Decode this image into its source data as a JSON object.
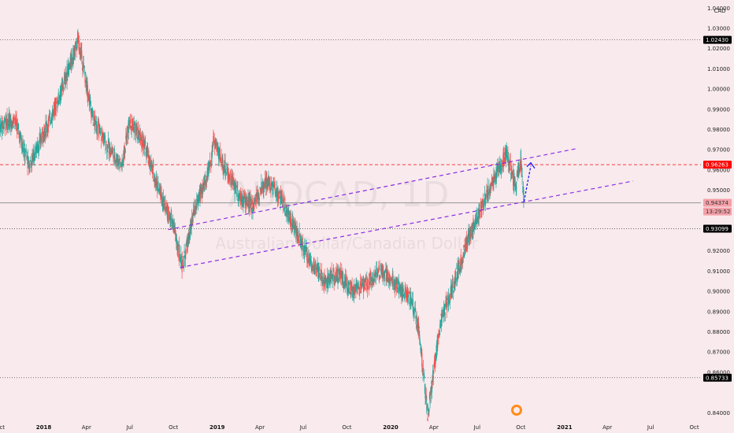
{
  "chart_data": {
    "type": "candlestick",
    "symbol": "AUDCAD, 1D",
    "instrument_name": "Australian Dollar/Canadian Dollar",
    "currency": "CAD",
    "y_axis": {
      "min": 0.837,
      "max": 1.044,
      "ticks": [
        "1.04000",
        "1.03000",
        "1.02000",
        "1.01000",
        "1.00000",
        "0.99000",
        "0.98000",
        "0.97000",
        "0.96000",
        "0.95000",
        "0.92000",
        "0.91000",
        "0.90000",
        "0.89000",
        "0.88000",
        "0.87000",
        "0.86000",
        "0.84000"
      ]
    },
    "x_axis": {
      "start": "2017-10-01",
      "end": "2021-10-15",
      "ticks": [
        {
          "label": "Oct",
          "date": "2017-10-01"
        },
        {
          "label": "2018",
          "date": "2018-01-01",
          "bold": true
        },
        {
          "label": "Apr",
          "date": "2018-04-01"
        },
        {
          "label": "Jul",
          "date": "2018-07-01"
        },
        {
          "label": "Oct",
          "date": "2018-10-01"
        },
        {
          "label": "2019",
          "date": "2019-01-01",
          "bold": true
        },
        {
          "label": "Apr",
          "date": "2019-04-01"
        },
        {
          "label": "Jul",
          "date": "2019-07-01"
        },
        {
          "label": "Oct",
          "date": "2019-10-01"
        },
        {
          "label": "2020",
          "date": "2020-01-01",
          "bold": true
        },
        {
          "label": "Apr",
          "date": "2020-04-01"
        },
        {
          "label": "Jul",
          "date": "2020-07-01"
        },
        {
          "label": "Oct",
          "date": "2020-10-01"
        },
        {
          "label": "2021",
          "date": "2021-01-01",
          "bold": true
        },
        {
          "label": "Apr",
          "date": "2021-04-01"
        },
        {
          "label": "Jul",
          "date": "2021-07-01"
        },
        {
          "label": "Oct",
          "date": "2021-10-01"
        }
      ]
    },
    "price_path": [
      [
        "2017-10-01",
        0.982
      ],
      [
        "2017-11-01",
        0.985
      ],
      [
        "2017-12-01",
        0.962
      ],
      [
        "2018-01-01",
        0.978
      ],
      [
        "2018-02-01",
        0.995
      ],
      [
        "2018-03-15",
        1.024
      ],
      [
        "2018-04-15",
        0.985
      ],
      [
        "2018-05-15",
        0.972
      ],
      [
        "2018-06-15",
        0.962
      ],
      [
        "2018-07-01",
        0.985
      ],
      [
        "2018-08-01",
        0.972
      ],
      [
        "2018-09-01",
        0.95
      ],
      [
        "2018-10-01",
        0.932
      ],
      [
        "2018-10-20",
        0.912
      ],
      [
        "2018-11-15",
        0.94
      ],
      [
        "2018-12-15",
        0.96
      ],
      [
        "2018-12-25",
        0.975
      ],
      [
        "2019-01-15",
        0.962
      ],
      [
        "2019-02-15",
        0.948
      ],
      [
        "2019-03-15",
        0.942
      ],
      [
        "2019-04-15",
        0.955
      ],
      [
        "2019-05-15",
        0.946
      ],
      [
        "2019-06-15",
        0.93
      ],
      [
        "2019-07-15",
        0.915
      ],
      [
        "2019-08-15",
        0.905
      ],
      [
        "2019-09-15",
        0.908
      ],
      [
        "2019-10-15",
        0.9
      ],
      [
        "2019-11-15",
        0.905
      ],
      [
        "2019-12-15",
        0.91
      ],
      [
        "2020-01-15",
        0.903
      ],
      [
        "2020-02-15",
        0.895
      ],
      [
        "2020-03-01",
        0.88
      ],
      [
        "2020-03-19",
        0.838
      ],
      [
        "2020-04-15",
        0.885
      ],
      [
        "2020-05-15",
        0.905
      ],
      [
        "2020-06-15",
        0.928
      ],
      [
        "2020-07-15",
        0.945
      ],
      [
        "2020-08-15",
        0.96
      ],
      [
        "2020-09-01",
        0.968
      ],
      [
        "2020-09-20",
        0.952
      ],
      [
        "2020-10-01",
        0.966
      ],
      [
        "2020-10-08",
        0.943
      ]
    ],
    "candle_noise": 0.004,
    "candle_color": "#26a69a",
    "horizontal_levels": [
      {
        "price": 1.0243,
        "label": "1.02430",
        "style": "dotted",
        "color": "#555555",
        "label_bg": "#000000",
        "label_color": "#ffffff"
      },
      {
        "price": 0.96263,
        "label": "0.96263",
        "style": "dashed",
        "color": "#ff0000",
        "label_bg": "#ff0000",
        "label_color": "#ffffff"
      },
      {
        "price": 0.94374,
        "label": "0.94374",
        "style": "solid",
        "color": "#888888",
        "label_bg": "#f4a0a8",
        "label_color": "#333333",
        "sub_label": "13:29:52"
      },
      {
        "price": 0.93099,
        "label": "0.93099",
        "style": "dotted",
        "color": "#555555",
        "label_bg": "#000000",
        "label_color": "#ffffff"
      },
      {
        "price": 0.85733,
        "label": "0.85733",
        "style": "dotted",
        "color": "#555555",
        "label_bg": "#000000",
        "label_color": "#ffffff"
      }
    ],
    "trend_lines": [
      {
        "from": [
          "2018-09-20",
          0.9305
        ],
        "to": [
          "2021-01-25",
          0.9705
        ],
        "style": "dashed",
        "color": "#8a2be2"
      },
      {
        "from": [
          "2018-10-15",
          0.9118
        ],
        "to": [
          "2021-05-25",
          0.9545
        ],
        "style": "dashed",
        "color": "#8a2be2"
      }
    ],
    "projection": {
      "from": [
        "2020-10-08",
        0.9445
      ],
      "to": [
        "2020-10-22",
        0.962
      ],
      "color": "#1a1aff"
    },
    "colors": {
      "background": "#f8eaed",
      "up": "#26a69a",
      "down": "#ef5350"
    },
    "grid": false
  }
}
